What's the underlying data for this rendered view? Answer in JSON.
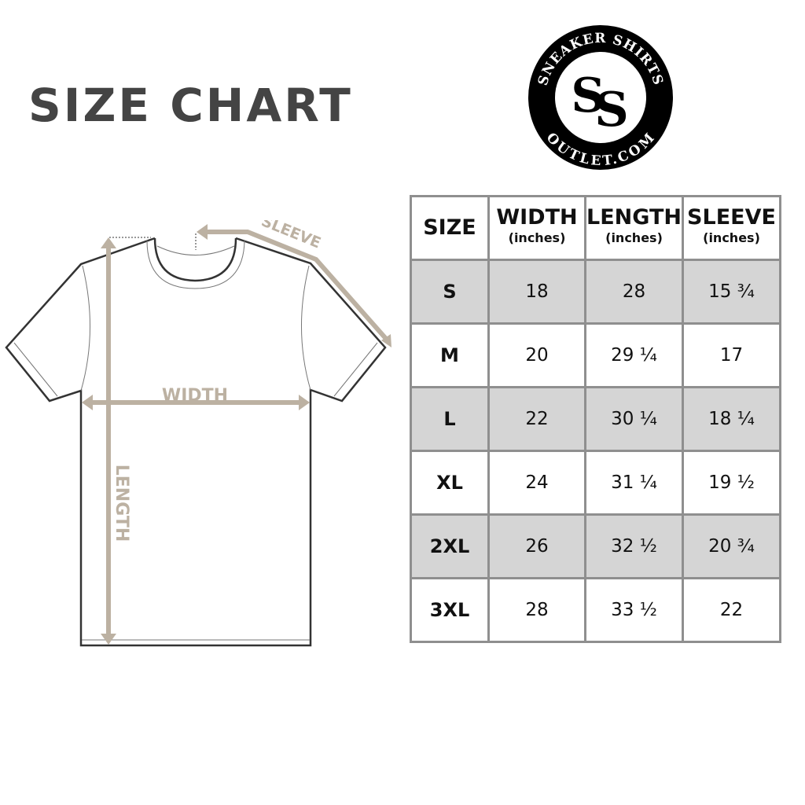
{
  "title": "SIZE CHART",
  "logo": {
    "top_text": "SNEAKER SHIRTS",
    "bottom_text": "OUTLET.COM",
    "monogram": "SS"
  },
  "diagram": {
    "sleeve_label": "SLEEVE",
    "width_label": "WIDTH",
    "length_label": "LENGTH",
    "accent_color": "#bcb1a2"
  },
  "table": {
    "headers": [
      {
        "label": "SIZE",
        "unit": ""
      },
      {
        "label": "WIDTH",
        "unit": "(inches)"
      },
      {
        "label": "LENGTH",
        "unit": "(inches)"
      },
      {
        "label": "SLEEVE",
        "unit": "(inches)"
      }
    ],
    "rows": [
      [
        "S",
        "18",
        "28",
        "15 ¾"
      ],
      [
        "M",
        "20",
        "29 ¼",
        "17"
      ],
      [
        "L",
        "22",
        "30 ¼",
        "18 ¼"
      ],
      [
        "XL",
        "24",
        "31 ¼",
        "19 ½"
      ],
      [
        "2XL",
        "26",
        "32 ½",
        "20 ¾"
      ],
      [
        "3XL",
        "28",
        "33 ½",
        "22"
      ]
    ],
    "shade_color": "#d5d5d5"
  }
}
